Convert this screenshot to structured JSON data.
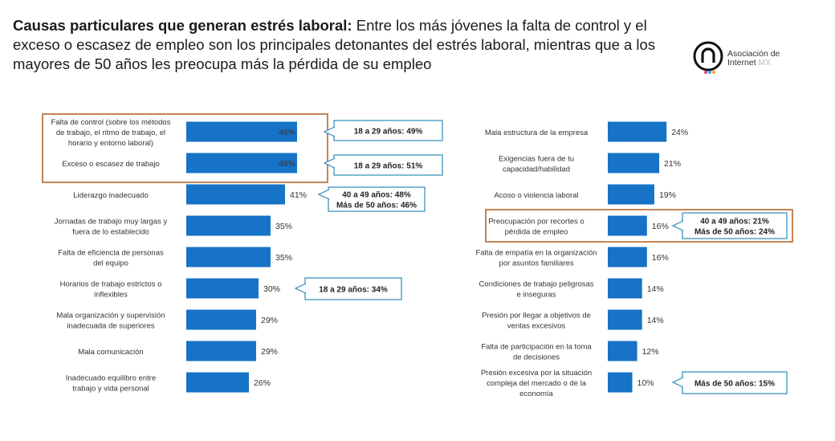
{
  "header": {
    "title_bold": "Causas particulares que generan estrés laboral:",
    "title_rest": " Entre los más jóvenes la falta de control y el exceso o escasez de empleo son los principales detonantes del estrés laboral, mientras que a los mayores de 50 años les preocupa más la pérdida de su empleo"
  },
  "logo": {
    "line1": "Asociación de",
    "line2": "Internet",
    "line2_suffix": "MX",
    "icon": "asociacion-internet-mx-logo-icon"
  },
  "colors": {
    "bar": "#1673c6",
    "callout_border": "#2e8ab8",
    "highlight_border": "#b4652b"
  },
  "chart_data": [
    {
      "type": "bar",
      "orientation": "horizontal",
      "xlim": [
        0,
        100
      ],
      "categories": [
        [
          "Falta de control (sobre los métodos",
          "de trabajo, el ritmo de trabajo, el",
          "horario y entorno laboral)"
        ],
        [
          "Exceso o escasez de trabajo"
        ],
        [
          "Liderazgo inadecuado"
        ],
        [
          "Jornadas de trabajo muy largas y",
          "fuera de lo establecido"
        ],
        [
          "Falta de eficiencia de personas",
          "del equipo"
        ],
        [
          "Horarios de trabajo estrictos o",
          "inflexibles"
        ],
        [
          "Mala organización y supervisión",
          "inadecuada de superiores"
        ],
        [
          "Mala comunicación"
        ],
        [
          "Inadecuado equilibro entre",
          "trabajo y vida personal"
        ]
      ],
      "values": [
        46,
        46,
        41,
        35,
        35,
        30,
        29,
        29,
        26
      ],
      "value_labels": [
        "46%",
        "46%",
        "41%",
        "35%",
        "35%",
        "30%",
        "29%",
        "29%",
        "26%"
      ],
      "highlighted": [
        0,
        1
      ],
      "annotations": [
        {
          "row": 0,
          "lines": [
            "18 a 29 años: 49%"
          ]
        },
        {
          "row": 1,
          "lines": [
            "18 a 29 años: 51%"
          ]
        },
        {
          "row": 2,
          "lines": [
            "40 a 49 años: 48%",
            "Más de 50 años: 46%"
          ]
        },
        {
          "row": 5,
          "lines": [
            "18 a 29 años: 34%"
          ]
        }
      ]
    },
    {
      "type": "bar",
      "orientation": "horizontal",
      "xlim": [
        0,
        100
      ],
      "categories": [
        [
          "Mala estructura de la empresa"
        ],
        [
          "Exigencias fuera de tu",
          "capacidad/habilidad"
        ],
        [
          "Acoso o violencia laboral"
        ],
        [
          "Preocupación por recortes o",
          "pérdida de empleo"
        ],
        [
          "Falta de empatía en la organización",
          "por asuntos familiares"
        ],
        [
          "Condiciones de trabajo peligrosas",
          "e inseguras"
        ],
        [
          "Presión por llegar a objetivos de",
          "ventas excesivos"
        ],
        [
          "Falta de participación en la toma",
          "de decisiones"
        ],
        [
          "Presión excesiva por la situación",
          "compleja del mercado o de la",
          "economía"
        ]
      ],
      "values": [
        24,
        21,
        19,
        16,
        16,
        14,
        14,
        12,
        10
      ],
      "value_labels": [
        "24%",
        "21%",
        "19%",
        "16%",
        "16%",
        "14%",
        "14%",
        "12%",
        "10%"
      ],
      "highlighted": [
        3
      ],
      "annotations": [
        {
          "row": 3,
          "lines": [
            "40 a 49 años: 21%",
            "Más de 50 años: 24%"
          ]
        },
        {
          "row": 8,
          "lines": [
            "Más de 50 años: 15%"
          ]
        }
      ]
    }
  ]
}
